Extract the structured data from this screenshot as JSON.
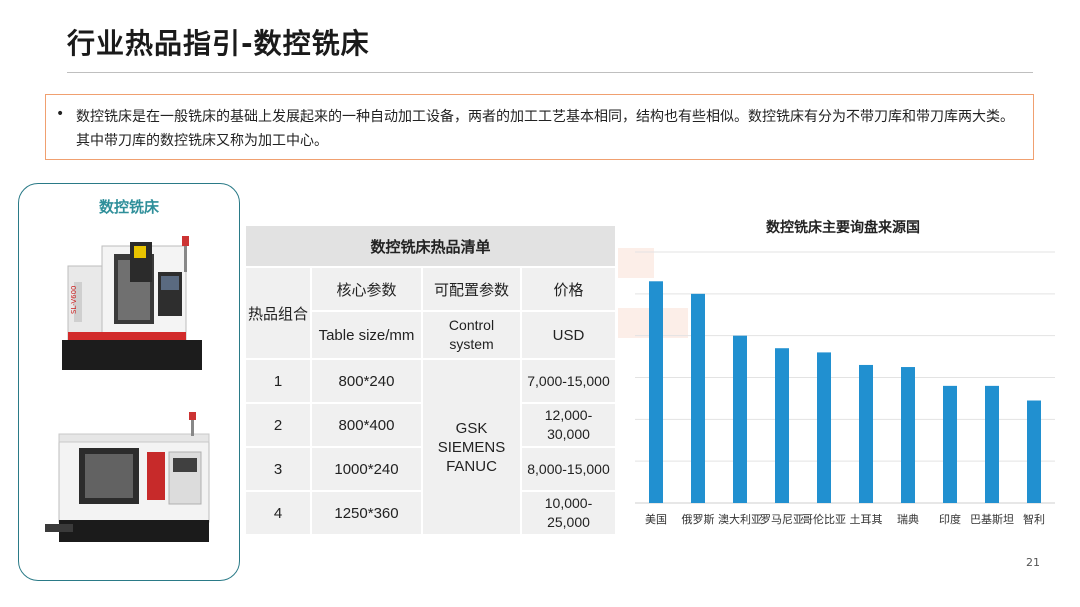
{
  "slide": {
    "title": "行业热品指引-数控铣床",
    "note": "数控铣床是在一般铣床的基础上发展起来的一种自动加工设备，两者的加工工艺基本相同，结构也有些相似。数控铣床有分为不带刀库和带刀库两大类。其中带刀库的数控铣床又称为加工中心。",
    "page_number": "21"
  },
  "card": {
    "title": "数控铣床",
    "machine_top_label": "SL-V600"
  },
  "table": {
    "caption": "数控铣床热品清单",
    "group_header": "热品组合",
    "headers": [
      "核心参数",
      "可配置参数",
      "价格"
    ],
    "subheaders": [
      "Table size/mm",
      "Control system",
      "USD"
    ],
    "control_systems": "GSK SIEMENS FANUC",
    "rows": [
      {
        "id": "1",
        "size": "800*240",
        "price": "7,000-15,000"
      },
      {
        "id": "2",
        "size": "800*400",
        "price": "12,000-30,000"
      },
      {
        "id": "3",
        "size": "1000*240",
        "price": "8,000-15,000"
      },
      {
        "id": "4",
        "size": "1250*360",
        "price": "10,000-25,000"
      }
    ]
  },
  "chart_data": {
    "type": "bar",
    "title": "数控铣床主要询盘来源国",
    "categories": [
      "美国",
      "俄罗斯",
      "澳大利亚",
      "罗马尼亚",
      "哥伦比亚",
      "土耳其",
      "瑞典",
      "印度",
      "巴基斯坦",
      "智利"
    ],
    "values": [
      5.3,
      5.0,
      4.0,
      3.7,
      3.6,
      3.3,
      3.25,
      2.8,
      2.8,
      2.45
    ],
    "ylim": [
      0,
      6
    ],
    "grid": true,
    "y_tick_labels_shown": false,
    "bar_color": "#2190d0"
  },
  "colors": {
    "note_border": "#f0a070",
    "card_border": "#2a7a87",
    "card_title": "#2f8f9a",
    "table_cell": "#f0f0f0",
    "table_caption": "#e2e2e2"
  }
}
